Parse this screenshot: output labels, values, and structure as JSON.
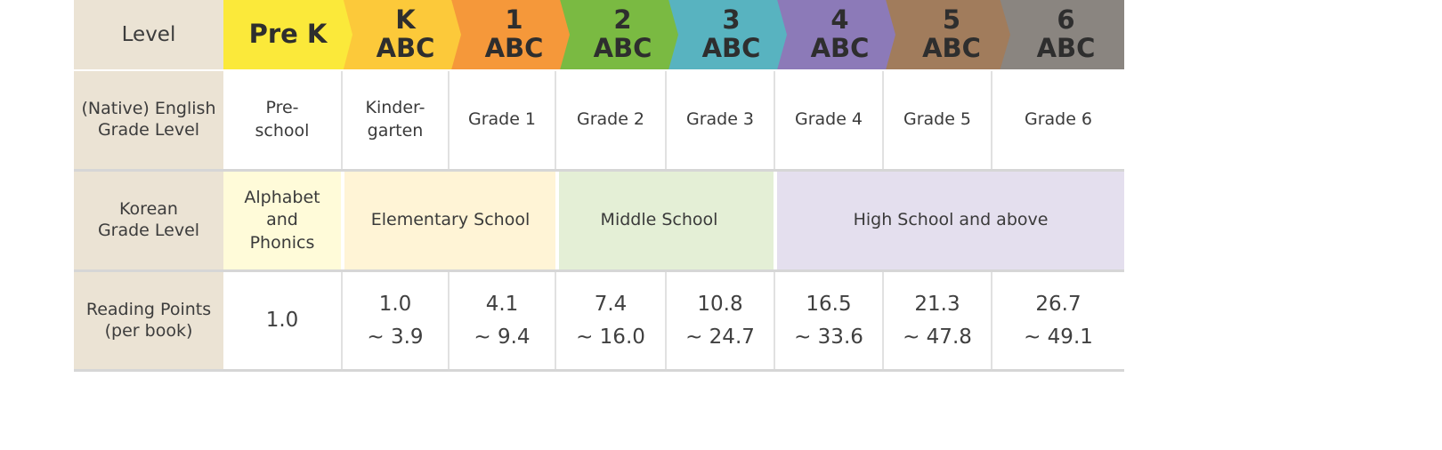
{
  "rows": {
    "level_label": "Level",
    "native_label": "(Native) English\nGrade Level",
    "korean_label": "Korean\nGrade Level",
    "points_label": "Reading Points\n(per book)"
  },
  "levels": [
    {
      "line1": "Pre K",
      "line2": "",
      "color": "#fbe93a"
    },
    {
      "line1": "K",
      "line2": "ABC",
      "color": "#fcc93a"
    },
    {
      "line1": "1",
      "line2": "ABC",
      "color": "#f5983a"
    },
    {
      "line1": "2",
      "line2": "ABC",
      "color": "#7aba42"
    },
    {
      "line1": "3",
      "line2": "ABC",
      "color": "#58b3c0"
    },
    {
      "line1": "4",
      "line2": "ABC",
      "color": "#8c7ab8"
    },
    {
      "line1": "5",
      "line2": "ABC",
      "color": "#a17c5c"
    },
    {
      "line1": "6",
      "line2": "ABC",
      "color": "#8a8580"
    }
  ],
  "native_grades": [
    "Pre-\nschool",
    "Kinder-\ngarten",
    "Grade 1",
    "Grade 2",
    "Grade 3",
    "Grade 4",
    "Grade 5",
    "Grade 6"
  ],
  "korean_grades": [
    {
      "label": "Alphabet\nand\nPhonics",
      "color": "#fffbd9"
    },
    {
      "label": "Elementary School",
      "color": "#fff4d6"
    },
    {
      "label": "Middle School",
      "color": "#e4efd6"
    },
    {
      "label": "High School and above",
      "color": "#e4dfee"
    }
  ],
  "reading_points": [
    "1.0",
    "1.0\n~ 3.9",
    "4.1\n~ 9.4",
    "7.4\n~ 16.0",
    "10.8\n~ 24.7",
    "16.5\n~ 33.6",
    "21.3\n~ 47.8",
    "26.7\n~ 49.1"
  ]
}
